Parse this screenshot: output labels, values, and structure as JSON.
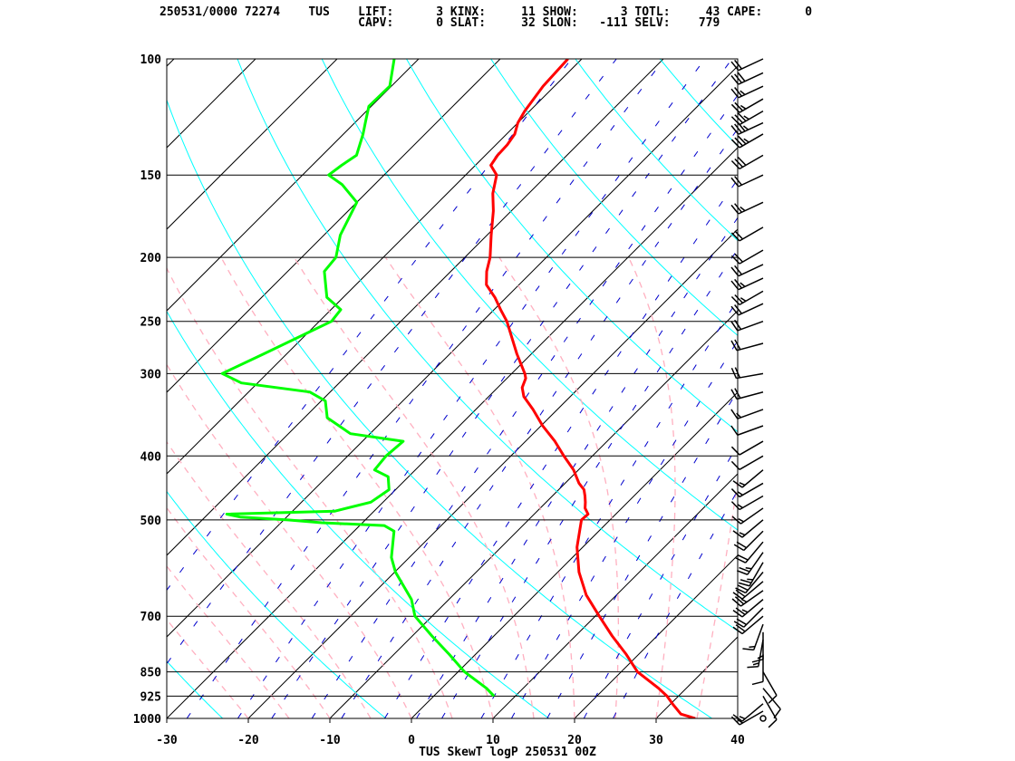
{
  "header": {
    "line1": "250531/0000 72274    TUS    LIFT:      3 KINX:     11 SHOW:      3 TOTL:     43 CAPE:      0",
    "line2": "                            CAPV:      0 SLAT:     32 SLON:   -111 SELV:    779"
  },
  "chart_data": {
    "type": "line",
    "title": "TUS SkewT logP 250531 00Z",
    "xlabel": "",
    "ylabel": "",
    "x_unit": "degC",
    "xlim": [
      -30,
      40
    ],
    "ylim_hPa": [
      1000,
      100
    ],
    "y_scale": "log",
    "skew": true,
    "x_ticks": [
      "-30",
      "-20",
      "-10",
      "0",
      "10",
      "20",
      "30",
      "40"
    ],
    "y_ticks": [
      "100",
      "150",
      "200",
      "250",
      "300",
      "400",
      "500",
      "700",
      "850",
      "925",
      "1000"
    ],
    "y_tick_values": [
      100,
      150,
      200,
      250,
      300,
      400,
      500,
      700,
      850,
      925,
      1000
    ],
    "background_lines": {
      "isotherms": "black",
      "dry_adiabats": "cyan",
      "moist_adiabats": "pink dashed",
      "mixing_ratio": "blue dashed"
    },
    "colors": {
      "temperature": "#ff0000",
      "dewpoint": "#00ff00",
      "isotherm": "#000000",
      "dry_adiabat": "#00ffff",
      "moist_adiabat": "#ffb0c0",
      "mixing_ratio": "#0000cc",
      "barb": "#000000"
    },
    "series": [
      {
        "points": [
          [
            1000,
            34.8
          ],
          [
            985,
            32.5
          ],
          [
            950,
            30.2
          ],
          [
            925,
            28.6
          ],
          [
            900,
            26.6
          ],
          [
            850,
            22.0
          ],
          [
            800,
            18.5
          ],
          [
            750,
            14.5
          ],
          [
            700,
            10.5
          ],
          [
            650,
            6.3
          ],
          [
            600,
            2.6
          ],
          [
            550,
            -0.7
          ],
          [
            500,
            -3.5
          ],
          [
            490,
            -3.4
          ],
          [
            480,
            -4.5
          ],
          [
            470,
            -5.2
          ],
          [
            460,
            -6.0
          ],
          [
            450,
            -6.9
          ],
          [
            440,
            -8.3
          ],
          [
            420,
            -10.6
          ],
          [
            400,
            -13.5
          ],
          [
            380,
            -16.4
          ],
          [
            360,
            -19.8
          ],
          [
            340,
            -23.0
          ],
          [
            325,
            -25.7
          ],
          [
            315,
            -27.0
          ],
          [
            305,
            -27.7
          ],
          [
            300,
            -28.4
          ],
          [
            280,
            -31.8
          ],
          [
            260,
            -35.2
          ],
          [
            250,
            -37.0
          ],
          [
            240,
            -39.2
          ],
          [
            230,
            -41.4
          ],
          [
            220,
            -44.0
          ],
          [
            210,
            -45.6
          ],
          [
            200,
            -46.9
          ],
          [
            185,
            -49.5
          ],
          [
            170,
            -52.2
          ],
          [
            160,
            -54.4
          ],
          [
            150,
            -56.2
          ],
          [
            145,
            -58.1
          ],
          [
            140,
            -58.5
          ],
          [
            135,
            -58.6
          ],
          [
            130,
            -59.0
          ],
          [
            125,
            -60.0
          ],
          [
            120,
            -60.6
          ],
          [
            110,
            -61.4
          ],
          [
            100,
            -61.7
          ]
        ]
      },
      {
        "points": [
          [
            925,
            7.4
          ],
          [
            900,
            5.5
          ],
          [
            850,
            0.8
          ],
          [
            800,
            -3.2
          ],
          [
            750,
            -7.6
          ],
          [
            700,
            -12.1
          ],
          [
            660,
            -14.6
          ],
          [
            600,
            -19.9
          ],
          [
            570,
            -22.2
          ],
          [
            520,
            -25.1
          ],
          [
            510,
            -27.0
          ],
          [
            505,
            -35.0
          ],
          [
            500,
            -39.5
          ],
          [
            495,
            -45.7
          ],
          [
            490,
            -47.7
          ],
          [
            485,
            -34.8
          ],
          [
            470,
            -31.5
          ],
          [
            450,
            -30.8
          ],
          [
            430,
            -32.5
          ],
          [
            420,
            -35.0
          ],
          [
            400,
            -35.3
          ],
          [
            380,
            -35.0
          ],
          [
            370,
            -42.4
          ],
          [
            350,
            -47.2
          ],
          [
            330,
            -49.5
          ],
          [
            320,
            -52.5
          ],
          [
            310,
            -62.0
          ],
          [
            300,
            -65.5
          ],
          [
            280,
            -62.8
          ],
          [
            260,
            -60.0
          ],
          [
            250,
            -58.5
          ],
          [
            240,
            -58.8
          ],
          [
            230,
            -62.0
          ],
          [
            210,
            -65.5
          ],
          [
            200,
            -65.8
          ],
          [
            185,
            -68.0
          ],
          [
            165,
            -70.0
          ],
          [
            155,
            -74.0
          ],
          [
            150,
            -76.8
          ],
          [
            145,
            -76.4
          ],
          [
            140,
            -75.8
          ],
          [
            130,
            -77.6
          ],
          [
            125,
            -78.7
          ],
          [
            118,
            -80.3
          ],
          [
            110,
            -80.2
          ],
          [
            100,
            -83.0
          ]
        ]
      }
    ],
    "wind_barbs_hPa": [
      [
        1000,
        0,
        0
      ],
      [
        975,
        240,
        15
      ],
      [
        950,
        230,
        15
      ],
      [
        925,
        150,
        10
      ],
      [
        900,
        140,
        10
      ],
      [
        850,
        150,
        10
      ],
      [
        800,
        180,
        10
      ],
      [
        760,
        190,
        15
      ],
      [
        740,
        180,
        15
      ],
      [
        720,
        200,
        15
      ],
      [
        700,
        230,
        20
      ],
      [
        680,
        225,
        20
      ],
      [
        660,
        230,
        25
      ],
      [
        640,
        235,
        25
      ],
      [
        620,
        230,
        20
      ],
      [
        600,
        220,
        20
      ],
      [
        580,
        210,
        25
      ],
      [
        560,
        215,
        25
      ],
      [
        540,
        220,
        20
      ],
      [
        520,
        225,
        20
      ],
      [
        500,
        230,
        15
      ],
      [
        480,
        235,
        15
      ],
      [
        460,
        240,
        15
      ],
      [
        440,
        240,
        15
      ],
      [
        420,
        230,
        15
      ],
      [
        400,
        240,
        10
      ],
      [
        380,
        240,
        10
      ],
      [
        360,
        250,
        10
      ],
      [
        340,
        250,
        15
      ],
      [
        320,
        255,
        20
      ],
      [
        300,
        260,
        20
      ],
      [
        270,
        255,
        20
      ],
      [
        250,
        250,
        20
      ],
      [
        235,
        245,
        20
      ],
      [
        225,
        240,
        25
      ],
      [
        215,
        245,
        25
      ],
      [
        205,
        245,
        20
      ],
      [
        195,
        240,
        20
      ],
      [
        180,
        240,
        20
      ],
      [
        165,
        245,
        25
      ],
      [
        150,
        245,
        20
      ],
      [
        140,
        240,
        30
      ],
      [
        130,
        240,
        35
      ],
      [
        125,
        245,
        35
      ],
      [
        120,
        240,
        35
      ],
      [
        115,
        240,
        25
      ],
      [
        110,
        245,
        25
      ],
      [
        105,
        245,
        30
      ],
      [
        100,
        245,
        20
      ]
    ]
  }
}
